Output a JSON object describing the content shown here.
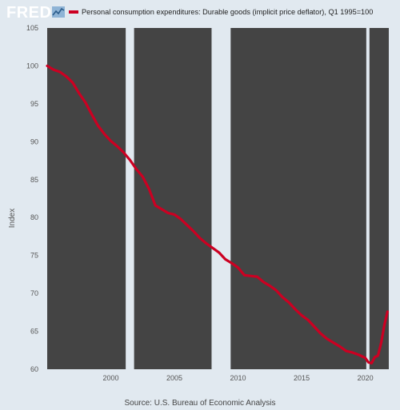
{
  "header": {
    "logo_text": "FRED",
    "logo_icon": "line-chart-icon",
    "legend_label": "Personal consumption expenditures: Durable goods (implicit price deflator), Q1 1995=100"
  },
  "source_text": "Source: U.S. Bureau of Economic Analysis",
  "chart_data": {
    "type": "line",
    "title": "",
    "xlabel": "",
    "ylabel": "Index",
    "xlim": [
      1995.0,
      2021.85
    ],
    "ylim": [
      60,
      105
    ],
    "yticks": [
      60,
      65,
      70,
      75,
      80,
      85,
      90,
      95,
      100,
      105
    ],
    "xticks": [
      2000,
      2005,
      2010,
      2015,
      2020
    ],
    "grid": false,
    "plot_background": "#444444",
    "recessions": [
      {
        "start": 2001.17,
        "end": 2001.83
      },
      {
        "start": 2007.92,
        "end": 2009.42
      },
      {
        "start": 2020.08,
        "end": 2020.33
      }
    ],
    "recession_color": "#e1e9f0",
    "series": [
      {
        "name": "Personal consumption expenditures: Durable goods (implicit price deflator), Q1 1995=100",
        "color": "#cc0022",
        "x": [
          1995.0,
          1995.5,
          1996.0,
          1996.5,
          1997.0,
          1997.5,
          1998.0,
          1998.5,
          1999.0,
          1999.5,
          2000.0,
          2000.5,
          2001.0,
          2001.5,
          2002.0,
          2002.5,
          2003.0,
          2003.5,
          2004.0,
          2004.5,
          2005.0,
          2005.5,
          2006.0,
          2006.5,
          2007.0,
          2007.5,
          2008.0,
          2008.5,
          2009.0,
          2009.5,
          2010.0,
          2010.5,
          2011.0,
          2011.5,
          2012.0,
          2012.5,
          2013.0,
          2013.5,
          2014.0,
          2014.5,
          2015.0,
          2015.5,
          2016.0,
          2016.5,
          2017.0,
          2017.5,
          2018.0,
          2018.5,
          2019.0,
          2019.5,
          2020.0,
          2020.25,
          2020.5,
          2020.75,
          2021.0,
          2021.25,
          2021.5,
          2021.75
        ],
        "values": [
          100.0,
          99.5,
          99.2,
          98.6,
          97.8,
          96.4,
          95.2,
          93.6,
          92.1,
          91.0,
          90.1,
          89.4,
          88.6,
          87.6,
          86.4,
          85.4,
          83.8,
          81.6,
          81.1,
          80.6,
          80.4,
          79.8,
          79.0,
          78.2,
          77.3,
          76.6,
          76.0,
          75.4,
          74.5,
          74.0,
          73.4,
          72.4,
          72.3,
          72.2,
          71.5,
          71.0,
          70.4,
          69.5,
          68.8,
          67.9,
          67.1,
          66.5,
          65.6,
          64.7,
          64.0,
          63.5,
          63.0,
          62.4,
          62.2,
          61.9,
          61.5,
          60.9,
          60.8,
          61.6,
          61.8,
          63.5,
          65.8,
          67.6
        ]
      }
    ]
  }
}
